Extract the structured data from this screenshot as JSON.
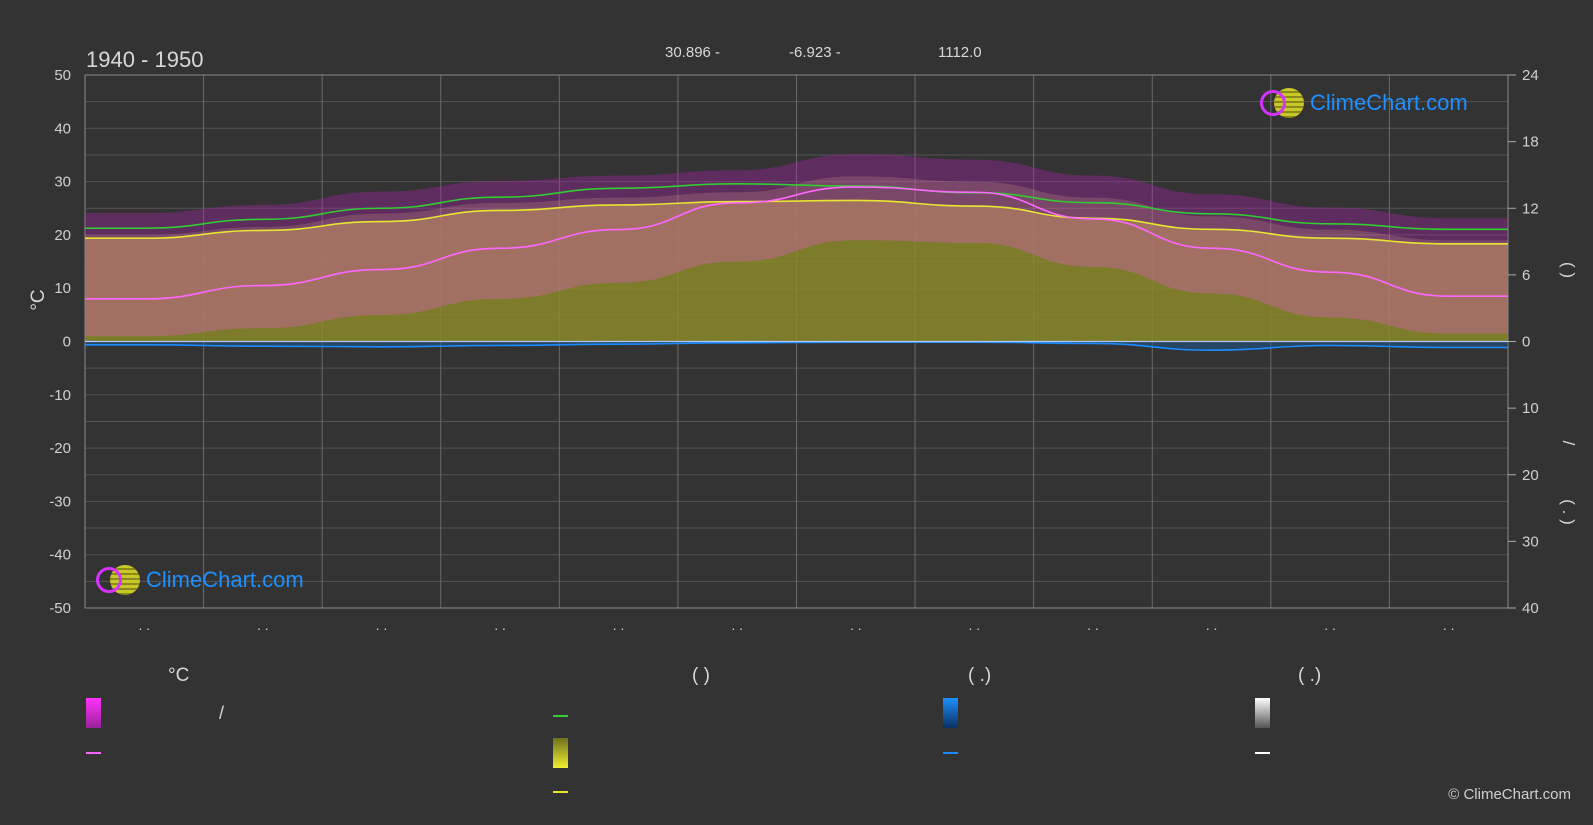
{
  "header": {
    "period": "1940 - 1950",
    "lat": "30.896 -",
    "lon": "-6.923 -",
    "elev": "1112.0"
  },
  "axes": {
    "left_unit": "°C",
    "left_ticks": [
      "50",
      "40",
      "30",
      "20",
      "10",
      "0",
      "-10",
      "-20",
      "-30",
      "-40",
      "-50"
    ],
    "right_ticks_top": [
      "24",
      "18",
      "12",
      "6",
      "0"
    ],
    "right_ticks_bottom": [
      "10",
      "20",
      "30",
      "40"
    ],
    "right_label_upper": "(   )",
    "right_label_lower": "/",
    "right_label_lower2": "(  .  )",
    "month_labels": [
      ". .",
      ". .",
      ". .",
      ". .",
      ". .",
      ". .",
      ". .",
      ". .",
      ". .",
      ". .",
      ". .",
      ". ."
    ]
  },
  "legend": {
    "col1_head": "°C",
    "col1_item1": "/",
    "col2_head": "(           )",
    "col3_head": "(    .)",
    "col4_head": "(    .)"
  },
  "logo_text": "ClimeChart.com",
  "copyright": "© ClimeChart.com",
  "colors": {
    "daylight": "#33cc33",
    "sunshine": "#e6e633",
    "mean_temp": "#ff66ff",
    "max_temp_fill": "#cc33cc",
    "rain": "#1a8cff",
    "snow": "#ffffff",
    "grid": "#5a5a5a"
  },
  "chart_data": {
    "type": "line",
    "x": [
      "Jan",
      "Feb",
      "Mar",
      "Apr",
      "May",
      "Jun",
      "Jul",
      "Aug",
      "Sep",
      "Oct",
      "Nov",
      "Dec"
    ],
    "ylim_left": [
      -50,
      50
    ],
    "ylim_right_hours": [
      0,
      24
    ],
    "ylim_right_precip": [
      0,
      40
    ],
    "series": [
      {
        "key": "daylight_hours",
        "values": [
          10.2,
          11.0,
          12.0,
          13.0,
          13.8,
          14.2,
          14.0,
          13.4,
          12.5,
          11.5,
          10.6,
          10.1
        ]
      },
      {
        "key": "sunshine_hours",
        "values": [
          9.3,
          10.0,
          10.8,
          11.8,
          12.3,
          12.6,
          12.7,
          12.2,
          11.1,
          10.1,
          9.3,
          8.8
        ]
      },
      {
        "key": "mean_daily_temp",
        "values": [
          8,
          10.5,
          13.5,
          17.5,
          21,
          26,
          29,
          28,
          23,
          17.5,
          13,
          8.5
        ]
      },
      {
        "key": "mean_daily_max",
        "values": [
          20,
          21.5,
          24,
          26,
          27,
          28,
          31,
          30,
          27,
          23.5,
          21,
          19
        ]
      },
      {
        "key": "mean_daily_min",
        "values": [
          1,
          2.5,
          5,
          8,
          11,
          15,
          19,
          18.5,
          14,
          9,
          4.5,
          1.5
        ]
      },
      {
        "key": "precipitation_mm",
        "values": [
          0.5,
          0.7,
          0.8,
          0.6,
          0.4,
          0.2,
          0.1,
          0.1,
          0.3,
          1.3,
          0.6,
          0.9
        ]
      },
      {
        "key": "snowfall_mm",
        "values": [
          0,
          0,
          0,
          0,
          0,
          0,
          0,
          0,
          0,
          0,
          0,
          0
        ]
      }
    ]
  }
}
